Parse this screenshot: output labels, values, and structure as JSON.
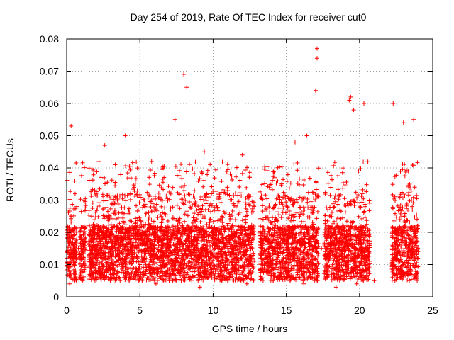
{
  "chart_data": {
    "type": "scatter",
    "title": "Day 254 of 2019, Rate Of TEC Index for receiver cut0",
    "xlabel": "GPS time / hours",
    "ylabel": "ROTI / TECUs",
    "xlim": [
      0,
      25
    ],
    "ylim": [
      0,
      0.08
    ],
    "xticks": [
      0,
      5,
      10,
      15,
      20,
      25
    ],
    "xtick_labels": [
      "0",
      "5",
      "10",
      "15",
      "20",
      "25"
    ],
    "yticks": [
      0,
      0.01,
      0.02,
      0.03,
      0.04,
      0.05,
      0.06,
      0.07,
      0.08
    ],
    "ytick_labels": [
      "0",
      "0.01",
      "0.02",
      "0.03",
      "0.04",
      "0.05",
      "0.06",
      "0.07",
      "0.08"
    ],
    "grid": true,
    "marker": "+",
    "color": "#ff0000",
    "series": [
      {
        "name": "ROTI",
        "x": [
          0.0,
          0.1,
          0.2,
          0.3,
          0.4,
          0.5,
          0.6,
          0.8,
          1.0,
          1.2,
          1.6,
          1.8,
          2.0,
          2.2,
          2.5,
          2.8,
          3.0,
          3.3,
          3.6,
          3.9,
          4.1,
          4.4,
          4.7,
          5.0,
          5.3,
          5.6,
          5.9,
          6.2,
          6.5,
          6.8,
          7.1,
          7.4,
          7.7,
          8.0,
          8.3,
          8.6,
          8.9,
          9.2,
          9.5,
          9.8,
          10.1,
          10.4,
          10.7,
          11.0,
          11.3,
          11.6,
          11.9,
          12.2,
          12.5,
          12.8,
          13.3,
          13.6,
          13.9,
          14.2,
          14.5,
          14.8,
          15.1,
          15.4,
          15.7,
          16.0,
          16.3,
          16.6,
          16.9,
          17.1,
          17.4,
          17.7,
          18.0,
          18.3,
          18.6,
          18.9,
          19.2,
          19.5,
          19.8,
          20.1,
          20.4,
          20.6,
          22.3,
          22.6,
          22.9,
          23.2,
          23.5,
          23.8,
          24.0,
          0.3,
          2.6,
          4.0,
          5.8,
          7.4,
          8.0,
          8.2,
          9.4,
          12.0,
          15.6,
          16.4,
          17.0,
          17.1,
          17.1,
          19.3,
          19.4,
          19.6,
          20.3,
          22.3,
          23.0,
          23.7,
          0.2,
          1.1,
          3.1,
          6.1,
          7.0,
          9.1,
          10.6,
          11.6,
          12.3,
          14.1,
          16.2,
          16.8,
          18.4,
          19.8,
          21.0,
          22.8,
          23.4
        ],
        "y": [
          0.012,
          0.009,
          0.018,
          0.025,
          0.012,
          0.01,
          0.008,
          0.015,
          0.012,
          0.018,
          0.02,
          0.01,
          0.014,
          0.008,
          0.016,
          0.012,
          0.02,
          0.015,
          0.01,
          0.018,
          0.012,
          0.02,
          0.016,
          0.01,
          0.018,
          0.014,
          0.022,
          0.012,
          0.015,
          0.02,
          0.016,
          0.018,
          0.012,
          0.015,
          0.02,
          0.016,
          0.011,
          0.018,
          0.014,
          0.012,
          0.016,
          0.02,
          0.013,
          0.015,
          0.018,
          0.012,
          0.016,
          0.014,
          0.018,
          0.011,
          0.015,
          0.012,
          0.018,
          0.014,
          0.016,
          0.012,
          0.018,
          0.02,
          0.015,
          0.014,
          0.022,
          0.018,
          0.016,
          0.02,
          0.015,
          0.012,
          0.018,
          0.016,
          0.02,
          0.015,
          0.022,
          0.012,
          0.018,
          0.014,
          0.012,
          0.01,
          0.012,
          0.016,
          0.02,
          0.015,
          0.018,
          0.012,
          0.014,
          0.053,
          0.047,
          0.05,
          0.042,
          0.055,
          0.069,
          0.065,
          0.045,
          0.044,
          0.048,
          0.05,
          0.064,
          0.074,
          0.077,
          0.061,
          0.062,
          0.058,
          0.06,
          0.06,
          0.054,
          0.055,
          0.004,
          0.005,
          0.006,
          0.004,
          0.005,
          0.003,
          0.005,
          0.006,
          0.004,
          0.005,
          0.004,
          0.006,
          0.003,
          0.004,
          0.005,
          0.006,
          0.005
        ]
      }
    ]
  }
}
